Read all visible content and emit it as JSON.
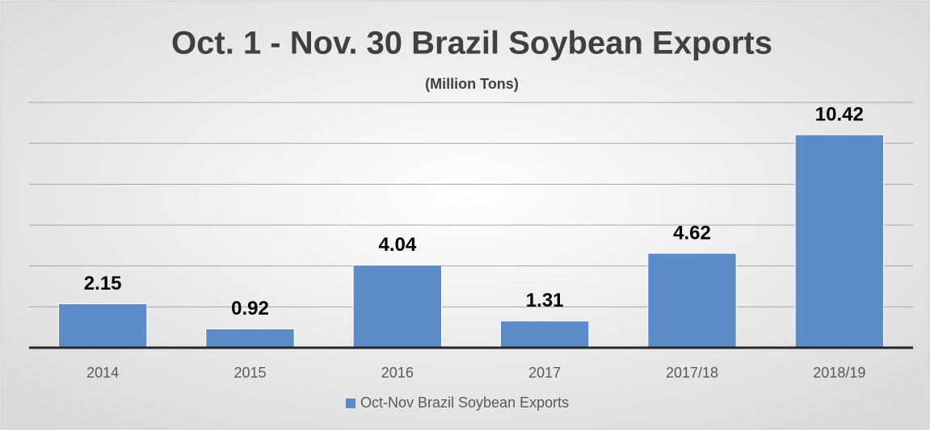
{
  "chart_data": {
    "type": "bar",
    "title": "Oct. 1 - Nov. 30 Brazil Soybean Exports",
    "subtitle": "(Million Tons)",
    "categories": [
      "2014",
      "2015",
      "2016",
      "2017",
      "2017/18",
      "2018/19"
    ],
    "series": [
      {
        "name": "Oct-Nov Brazil Soybean Exports",
        "color": "#5b8cc8",
        "values": [
          2.15,
          0.92,
          4.04,
          1.31,
          4.62,
          10.42
        ]
      }
    ],
    "ylim": [
      0,
      12
    ],
    "yticks": [
      0,
      2,
      4,
      6,
      8,
      10,
      12
    ],
    "grid": true,
    "legend": "bottom"
  }
}
